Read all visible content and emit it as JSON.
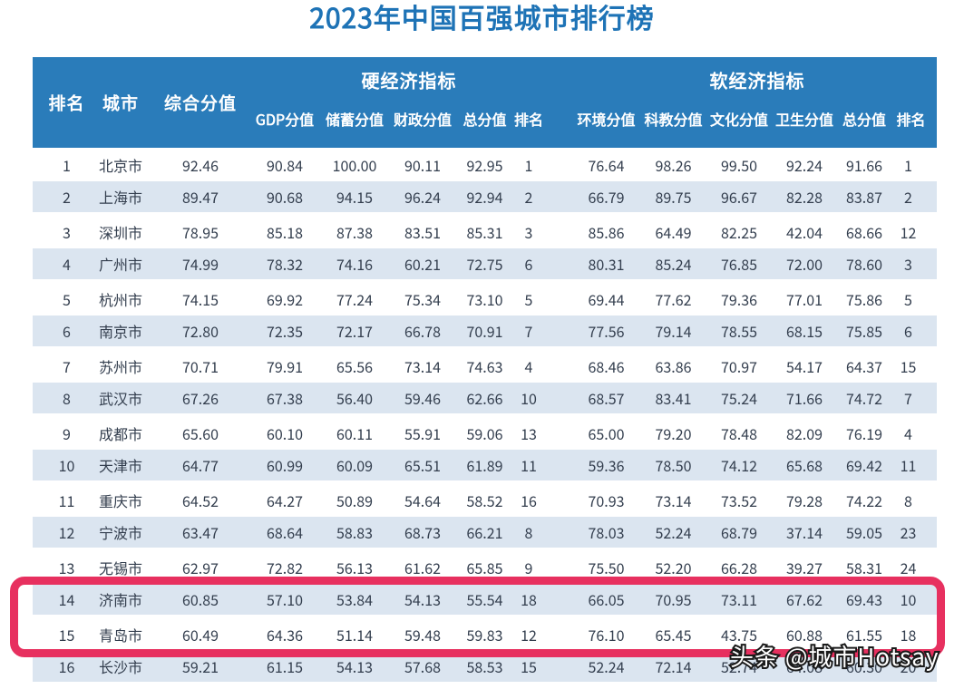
{
  "chart_data": {
    "type": "table",
    "title": "2023年中国百强城市排行榜",
    "watermark": "头条 @城市Hotsay",
    "group_headers": [
      {
        "key": "hard",
        "label": "硬经济指标",
        "span": [
          "gdp_score",
          "savings_score",
          "fiscal_score",
          "hard_total",
          "hard_rank"
        ]
      },
      {
        "key": "soft",
        "label": "软经济指标",
        "span": [
          "env_score",
          "sci_edu_score",
          "culture_score",
          "health_score",
          "soft_total",
          "soft_rank"
        ]
      }
    ],
    "columns": [
      {
        "key": "rank",
        "label": "排名"
      },
      {
        "key": "city",
        "label": "城市"
      },
      {
        "key": "composite_score",
        "label": "综合分值"
      },
      {
        "key": "gdp_score",
        "label": "GDP分值"
      },
      {
        "key": "savings_score",
        "label": "储蓄分值"
      },
      {
        "key": "fiscal_score",
        "label": "财政分值"
      },
      {
        "key": "hard_total",
        "label": "总分值"
      },
      {
        "key": "hard_rank",
        "label": "排名"
      },
      {
        "key": "env_score",
        "label": "环境分值"
      },
      {
        "key": "sci_edu_score",
        "label": "科教分值"
      },
      {
        "key": "culture_score",
        "label": "文化分值"
      },
      {
        "key": "health_score",
        "label": "卫生分值"
      },
      {
        "key": "soft_total",
        "label": "总分值"
      },
      {
        "key": "soft_rank",
        "label": "排名"
      }
    ],
    "rows": [
      [
        "1",
        "北京市",
        "92.46",
        "90.84",
        "100.00",
        "90.11",
        "92.95",
        "1",
        "76.64",
        "98.26",
        "99.50",
        "92.24",
        "91.66",
        "1"
      ],
      [
        "2",
        "上海市",
        "89.47",
        "90.68",
        "94.15",
        "96.24",
        "92.94",
        "2",
        "66.79",
        "89.75",
        "96.67",
        "82.28",
        "83.87",
        "2"
      ],
      [
        "3",
        "深圳市",
        "78.95",
        "85.18",
        "87.38",
        "83.51",
        "85.31",
        "3",
        "85.86",
        "64.49",
        "82.25",
        "42.04",
        "68.66",
        "12"
      ],
      [
        "4",
        "广州市",
        "74.99",
        "78.32",
        "74.16",
        "60.21",
        "72.75",
        "6",
        "80.31",
        "85.24",
        "76.85",
        "72.00",
        "78.60",
        "3"
      ],
      [
        "5",
        "杭州市",
        "74.15",
        "69.92",
        "77.24",
        "75.34",
        "73.10",
        "5",
        "69.44",
        "77.62",
        "79.36",
        "77.01",
        "75.86",
        "5"
      ],
      [
        "6",
        "南京市",
        "72.80",
        "72.35",
        "72.17",
        "66.78",
        "70.91",
        "7",
        "77.56",
        "79.14",
        "78.55",
        "68.15",
        "75.85",
        "6"
      ],
      [
        "7",
        "苏州市",
        "70.71",
        "79.91",
        "65.56",
        "73.14",
        "74.63",
        "4",
        "68.46",
        "63.86",
        "70.97",
        "54.17",
        "64.37",
        "15"
      ],
      [
        "8",
        "武汉市",
        "67.26",
        "67.38",
        "56.40",
        "59.46",
        "62.66",
        "10",
        "68.57",
        "83.41",
        "75.24",
        "71.66",
        "74.72",
        "7"
      ],
      [
        "9",
        "成都市",
        "65.60",
        "60.10",
        "60.11",
        "55.91",
        "59.06",
        "13",
        "65.00",
        "79.20",
        "78.48",
        "82.09",
        "76.19",
        "4"
      ],
      [
        "10",
        "天津市",
        "64.77",
        "60.99",
        "60.09",
        "65.51",
        "61.89",
        "11",
        "59.36",
        "78.50",
        "74.12",
        "65.68",
        "69.42",
        "11"
      ],
      [
        "11",
        "重庆市",
        "64.52",
        "64.27",
        "50.89",
        "54.64",
        "58.52",
        "16",
        "70.93",
        "73.14",
        "73.52",
        "79.28",
        "74.22",
        "8"
      ],
      [
        "12",
        "宁波市",
        "63.47",
        "68.64",
        "58.83",
        "68.73",
        "66.21",
        "8",
        "78.03",
        "52.24",
        "68.79",
        "37.14",
        "59.05",
        "23"
      ],
      [
        "13",
        "无锡市",
        "62.97",
        "72.82",
        "56.13",
        "61.62",
        "65.85",
        "9",
        "75.50",
        "52.20",
        "66.28",
        "39.27",
        "58.31",
        "24"
      ],
      [
        "14",
        "济南市",
        "60.85",
        "57.10",
        "53.84",
        "54.13",
        "55.54",
        "18",
        "66.05",
        "70.95",
        "73.11",
        "67.62",
        "69.43",
        "10"
      ],
      [
        "15",
        "青岛市",
        "60.49",
        "64.36",
        "51.14",
        "59.48",
        "59.83",
        "12",
        "76.10",
        "65.45",
        "43.75",
        "60.88",
        "61.55",
        "18"
      ],
      [
        "16",
        "长沙市",
        "59.21",
        "61.15",
        "54.13",
        "57.68",
        "58.53",
        "15",
        "52.24",
        "72.14",
        "52.74",
        "64.08",
        "60.30",
        "20"
      ]
    ],
    "highlighted_rows": [
      "14",
      "15"
    ],
    "colors": {
      "title_text": "#1e73b6",
      "header_bg": "#2a7cba",
      "header_text": "#ffffff",
      "row_alt_bg": "#dbe5f0",
      "body_text": "#333e4e",
      "highlight_border": "#e7305f",
      "watermark_fill": "#ffffff",
      "watermark_outline": "#1a1a1a"
    },
    "layout_hints": {
      "grid": "off",
      "alternating_rows": true
    }
  }
}
